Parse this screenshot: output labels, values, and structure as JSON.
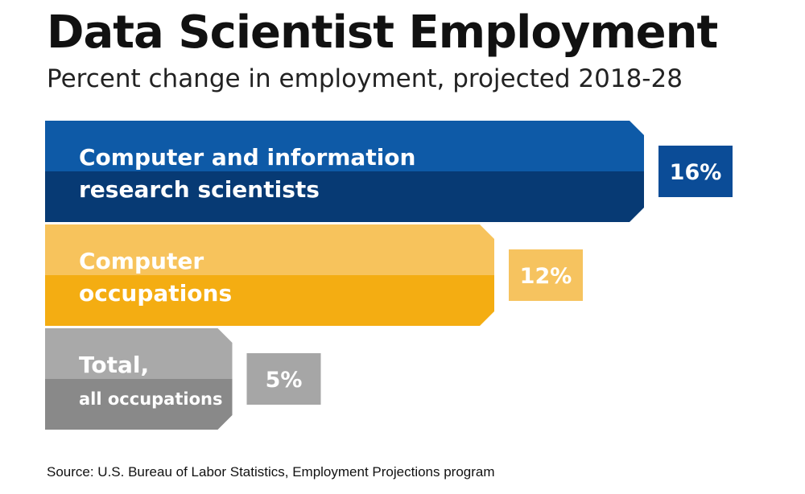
{
  "header": {
    "title": "Data Scientist Employment",
    "subtitle": "Percent change in employment, projected 2018-28"
  },
  "footer": {
    "source": "Source: U.S. Bureau of Labor Statistics, Employment Projections program"
  },
  "chart_data": {
    "type": "bar",
    "orientation": "horizontal",
    "title": "Data Scientist Employment",
    "subtitle": "Percent change in employment, projected 2018-28",
    "categories": [
      [
        "Computer and information",
        "research scientists"
      ],
      [
        "Computer",
        "occupations"
      ],
      [
        "Total,",
        "all occupations"
      ]
    ],
    "values": [
      16,
      12,
      5
    ],
    "value_labels": [
      "16%",
      "12%",
      "5%"
    ],
    "unit": "%",
    "colors": {
      "bars_top": [
        "#0e5aa7",
        "#f7c35c",
        "#a9a9a9"
      ],
      "bars_bottom": [
        "#073a74",
        "#f4ad12",
        "#898989"
      ],
      "value_boxes": [
        "#0b4c97",
        "#f6c35f",
        "#a6a6a6"
      ]
    },
    "grid": false,
    "legend": "none"
  }
}
